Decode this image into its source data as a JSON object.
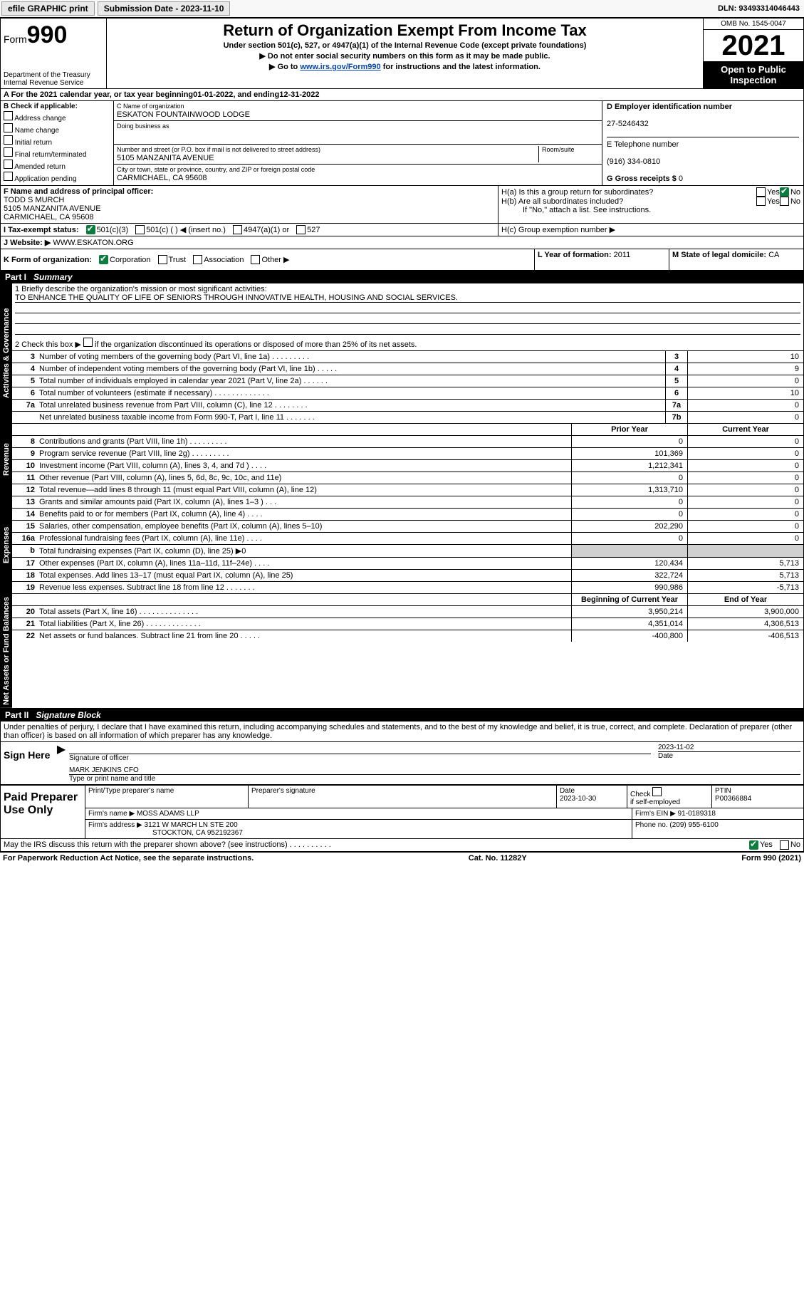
{
  "topbar": {
    "efile_label": "efile GRAPHIC print",
    "submission_label": "Submission Date - 2023-11-10",
    "dln_label": "DLN: 93493314046443"
  },
  "header": {
    "form_prefix": "Form",
    "form_number": "990",
    "dept": "Department of the Treasury",
    "irs": "Internal Revenue Service",
    "title": "Return of Organization Exempt From Income Tax",
    "subtitle": "Under section 501(c), 527, or 4947(a)(1) of the Internal Revenue Code (except private foundations)",
    "note1": "▶ Do not enter social security numbers on this form as it may be made public.",
    "note2_pre": "▶ Go to ",
    "note2_link": "www.irs.gov/Form990",
    "note2_post": " for instructions and the latest information.",
    "omb": "OMB No. 1545-0047",
    "year": "2021",
    "public1": "Open to Public",
    "public2": "Inspection"
  },
  "taxyear": {
    "text_a": "A For the 2021 calendar year, or tax year beginning ",
    "begin": "01-01-2022",
    "text_mid": " , and ending ",
    "end": "12-31-2022"
  },
  "sectionB": {
    "label": "B Check if applicable:",
    "opts": [
      "Address change",
      "Name change",
      "Initial return",
      "Final return/terminated",
      "Amended return",
      "Application pending"
    ]
  },
  "sectionC": {
    "name_label": "C Name of organization",
    "name": "ESKATON FOUNTAINWOOD LODGE",
    "dba_label": "Doing business as",
    "dba": "",
    "street_label": "Number and street (or P.O. box if mail is not delivered to street address)",
    "room_label": "Room/suite",
    "street": "5105 MANZANITA AVENUE",
    "city_label": "City or town, state or province, country, and ZIP or foreign postal code",
    "city": "CARMICHAEL, CA  95608"
  },
  "sectionD": {
    "label": "D Employer identification number",
    "value": "27-5246432"
  },
  "sectionE": {
    "label": "E Telephone number",
    "value": "(916) 334-0810"
  },
  "sectionG": {
    "label": "G Gross receipts $",
    "value": "0"
  },
  "sectionF": {
    "label": "F Name and address of principal officer:",
    "name": "TODD S MURCH",
    "street": "5105 MANZANITA AVENUE",
    "city": "CARMICHAEL, CA  95608"
  },
  "sectionH": {
    "ha": "H(a)  Is this a group return for subordinates?",
    "ha_yes": "Yes",
    "ha_no": "No",
    "hb": "H(b)  Are all subordinates included?",
    "hb_yes": "Yes",
    "hb_no": "No",
    "hb_note": "If \"No,\" attach a list. See instructions.",
    "hc": "H(c)  Group exemption number ▶"
  },
  "sectionI": {
    "label": "I  Tax-exempt status:",
    "o1": "501(c)(3)",
    "o2": "501(c) (  ) ◀ (insert no.)",
    "o3": "4947(a)(1) or",
    "o4": "527"
  },
  "sectionJ": {
    "label": "J  Website: ▶",
    "value": "WWW.ESKATON.ORG"
  },
  "sectionK": {
    "label": "K Form of organization:",
    "opts": [
      "Corporation",
      "Trust",
      "Association",
      "Other ▶"
    ]
  },
  "sectionL": {
    "label": "L Year of formation:",
    "value": "2011"
  },
  "sectionM": {
    "label": "M State of legal domicile:",
    "value": "CA"
  },
  "partI": {
    "label": "Part I",
    "title": "Summary",
    "q1_label": "1  Briefly describe the organization's mission or most significant activities:",
    "q1_text": "TO ENHANCE THE QUALITY OF LIFE OF SENIORS THROUGH INNOVATIVE HEALTH, HOUSING AND SOCIAL SERVICES.",
    "q2_label": "2  Check this box ▶",
    "q2_text": " if the organization discontinued its operations or disposed of more than 25% of its net assets.",
    "vtab_gov": "Activities & Governance",
    "vtab_rev": "Revenue",
    "vtab_exp": "Expenses",
    "vtab_net": "Net Assets or Fund Balances",
    "rows_gov": [
      {
        "n": "3",
        "t": "Number of voting members of the governing body (Part VI, line 1a)  .   .   .   .   .   .   .   .   .",
        "k": "3",
        "v": "10"
      },
      {
        "n": "4",
        "t": "Number of independent voting members of the governing body (Part VI, line 1b)  .   .   .   .   .",
        "k": "4",
        "v": "9"
      },
      {
        "n": "5",
        "t": "Total number of individuals employed in calendar year 2021 (Part V, line 2a)  .   .   .   .   .   .",
        "k": "5",
        "v": "0"
      },
      {
        "n": "6",
        "t": "Total number of volunteers (estimate if necessary)  .   .   .   .   .   .   .   .   .   .   .   .   .",
        "k": "6",
        "v": "10"
      },
      {
        "n": "7a",
        "t": "Total unrelated business revenue from Part VIII, column (C), line 12  .   .   .   .   .   .   .   .",
        "k": "7a",
        "v": "0"
      },
      {
        "n": "",
        "t": "Net unrelated business taxable income from Form 990-T, Part I, line 11  .   .   .   .   .   .   .",
        "k": "7b",
        "v": "0"
      }
    ],
    "hdr_prior": "Prior Year",
    "hdr_current": "Current Year",
    "rows_rev": [
      {
        "n": "8",
        "t": "Contributions and grants (Part VIII, line 1h)  .   .   .   .   .   .   .   .   .",
        "p": "0",
        "c": "0"
      },
      {
        "n": "9",
        "t": "Program service revenue (Part VIII, line 2g)  .   .   .   .   .   .   .   .   .",
        "p": "101,369",
        "c": "0"
      },
      {
        "n": "10",
        "t": "Investment income (Part VIII, column (A), lines 3, 4, and 7d )  .   .   .   .",
        "p": "1,212,341",
        "c": "0"
      },
      {
        "n": "11",
        "t": "Other revenue (Part VIII, column (A), lines 5, 6d, 8c, 9c, 10c, and 11e)",
        "p": "0",
        "c": "0"
      },
      {
        "n": "12",
        "t": "Total revenue—add lines 8 through 11 (must equal Part VIII, column (A), line 12)",
        "p": "1,313,710",
        "c": "0"
      }
    ],
    "rows_exp": [
      {
        "n": "13",
        "t": "Grants and similar amounts paid (Part IX, column (A), lines 1–3 )  .   .   .",
        "p": "0",
        "c": "0"
      },
      {
        "n": "14",
        "t": "Benefits paid to or for members (Part IX, column (A), line 4)  .   .   .   .",
        "p": "0",
        "c": "0"
      },
      {
        "n": "15",
        "t": "Salaries, other compensation, employee benefits (Part IX, column (A), lines 5–10)",
        "p": "202,290",
        "c": "0"
      },
      {
        "n": "16a",
        "t": "Professional fundraising fees (Part IX, column (A), line 11e)  .   .   .   .",
        "p": "0",
        "c": "0"
      },
      {
        "n": "b",
        "t": "Total fundraising expenses (Part IX, column (D), line 25) ▶0",
        "p": "",
        "c": "",
        "gray": true
      },
      {
        "n": "17",
        "t": "Other expenses (Part IX, column (A), lines 11a–11d, 11f–24e)  .   .   .   .",
        "p": "120,434",
        "c": "5,713"
      },
      {
        "n": "18",
        "t": "Total expenses. Add lines 13–17 (must equal Part IX, column (A), line 25)",
        "p": "322,724",
        "c": "5,713"
      },
      {
        "n": "19",
        "t": "Revenue less expenses. Subtract line 18 from line 12  .   .   .   .   .   .   .",
        "p": "990,986",
        "c": "-5,713"
      }
    ],
    "hdr_begin": "Beginning of Current Year",
    "hdr_end": "End of Year",
    "rows_net": [
      {
        "n": "20",
        "t": "Total assets (Part X, line 16)  .   .   .   .   .   .   .   .   .   .   .   .   .   .",
        "p": "3,950,214",
        "c": "3,900,000"
      },
      {
        "n": "21",
        "t": "Total liabilities (Part X, line 26)  .   .   .   .   .   .   .   .   .   .   .   .   .",
        "p": "4,351,014",
        "c": "4,306,513"
      },
      {
        "n": "22",
        "t": "Net assets or fund balances. Subtract line 21 from line 20  .   .   .   .   .",
        "p": "-400,800",
        "c": "-406,513"
      }
    ]
  },
  "partII": {
    "label": "Part II",
    "title": "Signature Block",
    "penalties": "Under penalties of perjury, I declare that I have examined this return, including accompanying schedules and statements, and to the best of my knowledge and belief, it is true, correct, and complete. Declaration of preparer (other than officer) is based on all information of which preparer has any knowledge.",
    "sign_here": "Sign Here",
    "sig_officer": "Signature of officer",
    "sig_date": "Date",
    "sig_date_val": "2023-11-02",
    "sig_name": "MARK JENKINS CFO",
    "sig_name_label": "Type or print name and title",
    "paid": "Paid Preparer Use Only",
    "prep_name_label": "Print/Type preparer's name",
    "prep_sig_label": "Preparer's signature",
    "prep_date_label": "Date",
    "prep_date_val": "2023-10-30",
    "prep_self": "Check",
    "prep_self2": "if self-employed",
    "ptin_label": "PTIN",
    "ptin": "P00366884",
    "firm_name_label": "Firm's name  ▶",
    "firm_name": "MOSS ADAMS LLP",
    "firm_ein_label": "Firm's EIN ▶",
    "firm_ein": "91-0189318",
    "firm_addr_label": "Firm's address ▶",
    "firm_addr1": "3121 W MARCH LN STE 200",
    "firm_addr2": "STOCKTON, CA  952192367",
    "phone_label": "Phone no.",
    "phone": "(209) 955-6100",
    "discuss": "May the IRS discuss this return with the preparer shown above? (see instructions)  .   .   .   .   .   .   .   .   .   .",
    "discuss_yes": "Yes",
    "discuss_no": "No"
  },
  "footer": {
    "left": "For Paperwork Reduction Act Notice, see the separate instructions.",
    "mid": "Cat. No. 11282Y",
    "right": "Form 990 (2021)"
  }
}
